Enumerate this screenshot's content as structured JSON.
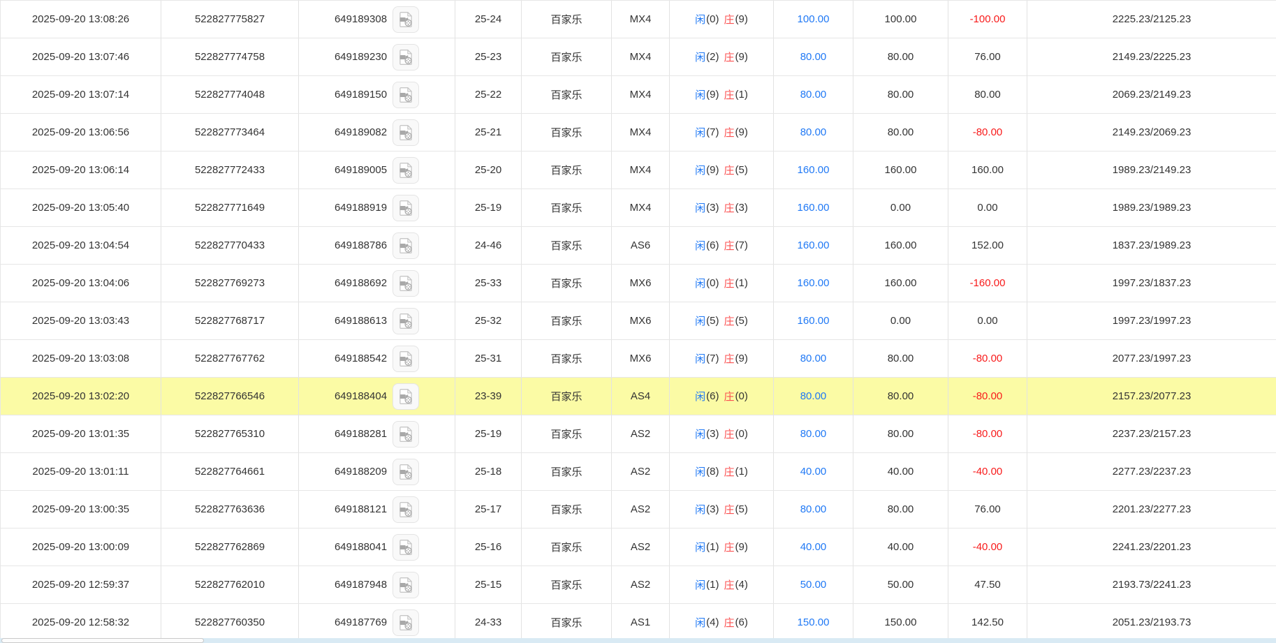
{
  "colors": {
    "text": "#333333",
    "border": "#e6e6e6",
    "border_vertical": "#e2e2e2",
    "accent_blue": "#2079f5",
    "negative_red": "#f81b1b",
    "banker_red": "#fb5050",
    "highlight_yellow": "#fbfba5",
    "scrollbar_track": "#d9eaf4"
  },
  "result_labels": {
    "player": "闲",
    "banker": "庄"
  },
  "icons": {
    "video_replay": "video-film-icon"
  },
  "table": {
    "rows": [
      {
        "time": "2025-09-20 13:08:26",
        "bet_no": "522827775827",
        "game_no": "649189308",
        "round": "25-24",
        "game": "百家乐",
        "table": "MX4",
        "player": "0",
        "banker": "9",
        "bet": "100.00",
        "valid": "100.00",
        "profit": "-100.00",
        "balance": "2225.23/2125.23",
        "highlight": false
      },
      {
        "time": "2025-09-20 13:07:46",
        "bet_no": "522827774758",
        "game_no": "649189230",
        "round": "25-23",
        "game": "百家乐",
        "table": "MX4",
        "player": "2",
        "banker": "9",
        "bet": "80.00",
        "valid": "80.00",
        "profit": "76.00",
        "balance": "2149.23/2225.23",
        "highlight": false
      },
      {
        "time": "2025-09-20 13:07:14",
        "bet_no": "522827774048",
        "game_no": "649189150",
        "round": "25-22",
        "game": "百家乐",
        "table": "MX4",
        "player": "9",
        "banker": "1",
        "bet": "80.00",
        "valid": "80.00",
        "profit": "80.00",
        "balance": "2069.23/2149.23",
        "highlight": false
      },
      {
        "time": "2025-09-20 13:06:56",
        "bet_no": "522827773464",
        "game_no": "649189082",
        "round": "25-21",
        "game": "百家乐",
        "table": "MX4",
        "player": "7",
        "banker": "9",
        "bet": "80.00",
        "valid": "80.00",
        "profit": "-80.00",
        "balance": "2149.23/2069.23",
        "highlight": false
      },
      {
        "time": "2025-09-20 13:06:14",
        "bet_no": "522827772433",
        "game_no": "649189005",
        "round": "25-20",
        "game": "百家乐",
        "table": "MX4",
        "player": "9",
        "banker": "5",
        "bet": "160.00",
        "valid": "160.00",
        "profit": "160.00",
        "balance": "1989.23/2149.23",
        "highlight": false
      },
      {
        "time": "2025-09-20 13:05:40",
        "bet_no": "522827771649",
        "game_no": "649188919",
        "round": "25-19",
        "game": "百家乐",
        "table": "MX4",
        "player": "3",
        "banker": "3",
        "bet": "160.00",
        "valid": "0.00",
        "profit": "0.00",
        "balance": "1989.23/1989.23",
        "highlight": false
      },
      {
        "time": "2025-09-20 13:04:54",
        "bet_no": "522827770433",
        "game_no": "649188786",
        "round": "24-46",
        "game": "百家乐",
        "table": "AS6",
        "player": "6",
        "banker": "7",
        "bet": "160.00",
        "valid": "160.00",
        "profit": "152.00",
        "balance": "1837.23/1989.23",
        "highlight": false
      },
      {
        "time": "2025-09-20 13:04:06",
        "bet_no": "522827769273",
        "game_no": "649188692",
        "round": "25-33",
        "game": "百家乐",
        "table": "MX6",
        "player": "0",
        "banker": "1",
        "bet": "160.00",
        "valid": "160.00",
        "profit": "-160.00",
        "balance": "1997.23/1837.23",
        "highlight": false
      },
      {
        "time": "2025-09-20 13:03:43",
        "bet_no": "522827768717",
        "game_no": "649188613",
        "round": "25-32",
        "game": "百家乐",
        "table": "MX6",
        "player": "5",
        "banker": "5",
        "bet": "160.00",
        "valid": "0.00",
        "profit": "0.00",
        "balance": "1997.23/1997.23",
        "highlight": false
      },
      {
        "time": "2025-09-20 13:03:08",
        "bet_no": "522827767762",
        "game_no": "649188542",
        "round": "25-31",
        "game": "百家乐",
        "table": "MX6",
        "player": "7",
        "banker": "9",
        "bet": "80.00",
        "valid": "80.00",
        "profit": "-80.00",
        "balance": "2077.23/1997.23",
        "highlight": false
      },
      {
        "time": "2025-09-20 13:02:20",
        "bet_no": "522827766546",
        "game_no": "649188404",
        "round": "23-39",
        "game": "百家乐",
        "table": "AS4",
        "player": "6",
        "banker": "0",
        "bet": "80.00",
        "valid": "80.00",
        "profit": "-80.00",
        "balance": "2157.23/2077.23",
        "highlight": true
      },
      {
        "time": "2025-09-20 13:01:35",
        "bet_no": "522827765310",
        "game_no": "649188281",
        "round": "25-19",
        "game": "百家乐",
        "table": "AS2",
        "player": "3",
        "banker": "0",
        "bet": "80.00",
        "valid": "80.00",
        "profit": "-80.00",
        "balance": "2237.23/2157.23",
        "highlight": false
      },
      {
        "time": "2025-09-20 13:01:11",
        "bet_no": "522827764661",
        "game_no": "649188209",
        "round": "25-18",
        "game": "百家乐",
        "table": "AS2",
        "player": "8",
        "banker": "1",
        "bet": "40.00",
        "valid": "40.00",
        "profit": "-40.00",
        "balance": "2277.23/2237.23",
        "highlight": false
      },
      {
        "time": "2025-09-20 13:00:35",
        "bet_no": "522827763636",
        "game_no": "649188121",
        "round": "25-17",
        "game": "百家乐",
        "table": "AS2",
        "player": "3",
        "banker": "5",
        "bet": "80.00",
        "valid": "80.00",
        "profit": "76.00",
        "balance": "2201.23/2277.23",
        "highlight": false
      },
      {
        "time": "2025-09-20 13:00:09",
        "bet_no": "522827762869",
        "game_no": "649188041",
        "round": "25-16",
        "game": "百家乐",
        "table": "AS2",
        "player": "1",
        "banker": "9",
        "bet": "40.00",
        "valid": "40.00",
        "profit": "-40.00",
        "balance": "2241.23/2201.23",
        "highlight": false
      },
      {
        "time": "2025-09-20 12:59:37",
        "bet_no": "522827762010",
        "game_no": "649187948",
        "round": "25-15",
        "game": "百家乐",
        "table": "AS2",
        "player": "1",
        "banker": "4",
        "bet": "50.00",
        "valid": "50.00",
        "profit": "47.50",
        "balance": "2193.73/2241.23",
        "highlight": false
      },
      {
        "time": "2025-09-20 12:58:32",
        "bet_no": "522827760350",
        "game_no": "649187769",
        "round": "24-33",
        "game": "百家乐",
        "table": "AS1",
        "player": "4",
        "banker": "6",
        "bet": "150.00",
        "valid": "150.00",
        "profit": "142.50",
        "balance": "2051.23/2193.73",
        "highlight": false
      }
    ]
  }
}
